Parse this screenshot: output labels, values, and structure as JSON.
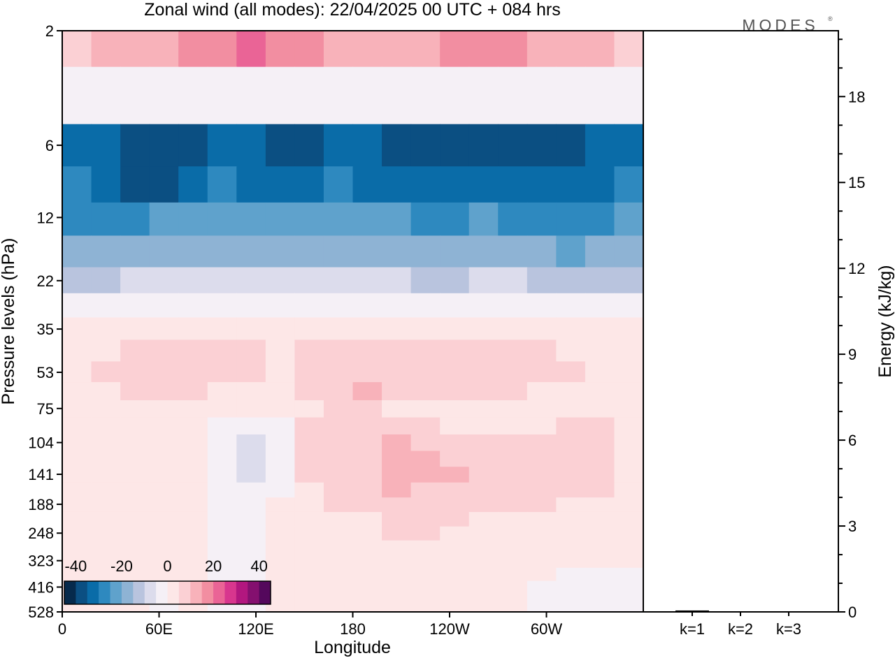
{
  "title": "Zonal wind (all modes):  22/04/2025  00 UTC  + 084 hrs",
  "logo": "MODES",
  "chart_data": [
    {
      "type": "heatmap",
      "title": "Zonal wind (all modes):  22/04/2025  00 UTC  + 084 hrs",
      "xlabel": "Longitude",
      "ylabel": "Pressure levels (hPa)",
      "x_ticks": [
        "0",
        "60E",
        "120E",
        "180",
        "120W",
        "60W"
      ],
      "y_ticks": [
        "2",
        "6",
        "12",
        "22",
        "35",
        "53",
        "75",
        "104",
        "141",
        "188",
        "248",
        "323",
        "416",
        "528"
      ],
      "colorbar": {
        "tick_labels": [
          "-40",
          "-20",
          "0",
          "20",
          "40"
        ],
        "range": [
          -45,
          45
        ],
        "colors": [
          "#062a4c",
          "#0b4f82",
          "#0a6ca8",
          "#2e89bf",
          "#5fa2cc",
          "#8eb3d4",
          "#b9c4de",
          "#dcdcec",
          "#f5f0f6",
          "#fde7e7",
          "#fbd0d4",
          "#f8b2ba",
          "#f28ea1",
          "#ea6496",
          "#d8368e",
          "#b2177f",
          "#84106f",
          "#54085c"
        ]
      },
      "bands": [
        {
          "level": "2",
          "values": [
            8,
            10,
            12,
            14,
            16,
            18,
            20,
            18,
            16,
            14,
            12,
            12,
            14,
            16,
            18,
            16,
            14,
            12,
            10,
            8
          ]
        },
        {
          "level": "4",
          "values": [
            -4,
            -3,
            -2,
            -3,
            -4,
            -3,
            -2,
            -2,
            -3,
            -4,
            -3,
            -2,
            -3,
            -4,
            -3,
            -2,
            -3,
            -4,
            -3,
            -4
          ]
        },
        {
          "level": "6",
          "values": [
            -32,
            -34,
            -36,
            -38,
            -36,
            -34,
            -35,
            -37,
            -36,
            -34,
            -35,
            -38,
            -40,
            -39,
            -36,
            -37,
            -39,
            -38,
            -35,
            -33
          ]
        },
        {
          "level": "9",
          "values": [
            -30,
            -32,
            -36,
            -36,
            -33,
            -30,
            -31,
            -33,
            -32,
            -30,
            -31,
            -34,
            -35,
            -34,
            -32,
            -33,
            -35,
            -34,
            -31,
            -29
          ]
        },
        {
          "level": "12",
          "values": [
            -26,
            -28,
            -27,
            -25,
            -24,
            -22,
            -23,
            -25,
            -24,
            -23,
            -24,
            -25,
            -26,
            -26,
            -25,
            -26,
            -27,
            -28,
            -26,
            -25
          ]
        },
        {
          "level": "17",
          "values": [
            -20,
            -20,
            -18,
            -17,
            -18,
            -17,
            -16,
            -18,
            -19,
            -18,
            -18,
            -19,
            -20,
            -20,
            -19,
            -19,
            -20,
            -21,
            -20,
            -19
          ]
        },
        {
          "level": "22",
          "values": [
            -12,
            -12,
            -10,
            -9,
            -10,
            -9,
            -8,
            -9,
            -10,
            -10,
            -9,
            -10,
            -11,
            -11,
            -10,
            -10,
            -11,
            -12,
            -12,
            -11
          ]
        },
        {
          "level": "28",
          "values": [
            -3,
            -2,
            -1,
            -1,
            -2,
            -2,
            -1,
            -1,
            -2,
            -2,
            -1,
            -2,
            -3,
            -3,
            -2,
            -2,
            -3,
            -4,
            -4,
            -3
          ]
        },
        {
          "level": "35",
          "values": [
            1,
            2,
            2,
            3,
            2,
            2,
            2,
            3,
            2,
            2,
            2,
            2,
            2,
            2,
            2,
            2,
            2,
            2,
            2,
            1
          ]
        },
        {
          "level": "43",
          "values": [
            3,
            4,
            6,
            7,
            6,
            5,
            5,
            4,
            5,
            6,
            6,
            7,
            6,
            5,
            6,
            6,
            5,
            4,
            3,
            3
          ]
        },
        {
          "level": "53",
          "values": [
            4,
            5,
            7,
            8,
            7,
            6,
            5,
            4,
            6,
            8,
            9,
            8,
            6,
            6,
            9,
            8,
            6,
            5,
            4,
            4
          ]
        },
        {
          "level": "64",
          "values": [
            3,
            4,
            6,
            6,
            5,
            4,
            3,
            3,
            5,
            8,
            10,
            7,
            5,
            5,
            7,
            6,
            4,
            4,
            3,
            3
          ]
        },
        {
          "level": "75",
          "values": [
            2,
            2,
            3,
            3,
            2,
            1,
            1,
            2,
            4,
            6,
            6,
            4,
            3,
            2,
            1,
            1,
            3,
            4,
            4,
            3
          ]
        },
        {
          "level": "89",
          "values": [
            1,
            1,
            1,
            2,
            1,
            -1,
            -3,
            -2,
            5,
            6,
            7,
            8,
            5,
            3,
            1,
            2,
            4,
            5,
            5,
            4
          ]
        },
        {
          "level": "104",
          "values": [
            0,
            0,
            1,
            1,
            0,
            -2,
            -6,
            -3,
            6,
            7,
            8,
            11,
            9,
            6,
            5,
            5,
            6,
            6,
            5,
            4
          ]
        },
        {
          "level": "122",
          "values": [
            0,
            0,
            1,
            1,
            0,
            -3,
            -8,
            -4,
            5,
            6,
            8,
            12,
            11,
            8,
            8,
            7,
            6,
            5,
            5,
            4
          ]
        },
        {
          "level": "141",
          "values": [
            1,
            1,
            2,
            1,
            0,
            -3,
            -6,
            -2,
            5,
            6,
            7,
            12,
            10,
            10,
            9,
            7,
            6,
            6,
            5,
            4
          ]
        },
        {
          "level": "165",
          "values": [
            1,
            2,
            3,
            2,
            0,
            -3,
            -4,
            -1,
            4,
            5,
            6,
            10,
            9,
            9,
            8,
            6,
            6,
            5,
            5,
            4
          ]
        },
        {
          "level": "188",
          "values": [
            2,
            2,
            3,
            2,
            0,
            -2,
            -3,
            0,
            4,
            5,
            5,
            9,
            7,
            6,
            6,
            5,
            5,
            4,
            4,
            3
          ]
        },
        {
          "level": "218",
          "values": [
            2,
            2,
            2,
            1,
            0,
            -2,
            -2,
            0,
            3,
            4,
            4,
            8,
            6,
            5,
            4,
            4,
            4,
            3,
            3,
            2
          ]
        },
        {
          "level": "248",
          "values": [
            2,
            2,
            2,
            1,
            0,
            -2,
            -2,
            0,
            3,
            3,
            3,
            6,
            5,
            4,
            3,
            3,
            3,
            3,
            2,
            2
          ]
        },
        {
          "level": "285",
          "values": [
            1,
            1,
            2,
            1,
            0,
            -1,
            -2,
            0,
            2,
            2,
            2,
            4,
            3,
            3,
            2,
            2,
            2,
            2,
            1,
            1
          ]
        },
        {
          "level": "323",
          "values": [
            0,
            1,
            1,
            0,
            0,
            -1,
            -1,
            0,
            1,
            1,
            1,
            2,
            2,
            2,
            1,
            1,
            1,
            1,
            0,
            0
          ]
        },
        {
          "level": "370",
          "values": [
            0,
            0,
            0,
            0,
            0,
            -1,
            -1,
            0,
            0,
            0,
            0,
            1,
            1,
            1,
            0,
            0,
            0,
            -1,
            -1,
            -1
          ]
        },
        {
          "level": "416",
          "values": [
            0,
            0,
            0,
            0,
            0,
            -1,
            -1,
            0,
            0,
            0,
            0,
            0,
            0,
            1,
            0,
            0,
            -1,
            -2,
            -2,
            -1
          ]
        },
        {
          "level": "472",
          "values": [
            0,
            0,
            0,
            -1,
            0,
            -1,
            -1,
            0,
            0,
            0,
            0,
            0,
            0,
            0,
            0,
            0,
            -1,
            -3,
            -3,
            -2
          ]
        },
        {
          "level": "528",
          "values": [
            0,
            0,
            0,
            -1,
            0,
            -1,
            -1,
            0,
            0,
            0,
            0,
            0,
            0,
            0,
            0,
            0,
            -1,
            -3,
            -3,
            -2
          ]
        }
      ]
    },
    {
      "type": "bar",
      "categories": [
        "k=1",
        "k=2",
        "k=3"
      ],
      "values": [
        0.05,
        0.02,
        0.02
      ],
      "ylabel": "Energy (kJ/kg)",
      "y_ticks": [
        "0",
        "3",
        "6",
        "9",
        "12",
        "15",
        "18"
      ],
      "ylim": [
        0,
        20.3
      ]
    }
  ]
}
